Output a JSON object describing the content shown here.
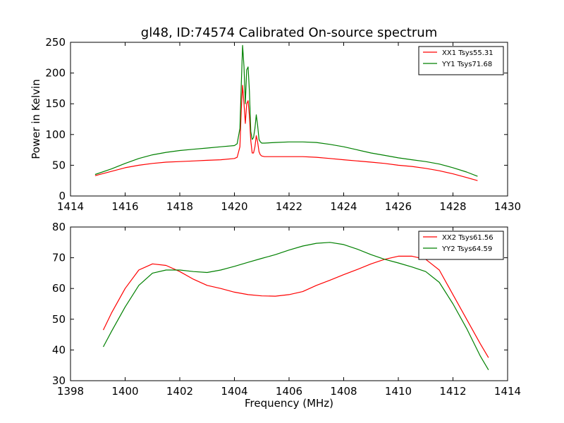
{
  "chart_data": [
    {
      "type": "line",
      "title": "gl48, ID:74574 Calibrated On-source spectrum",
      "xlabel": "",
      "ylabel": "Power in Kelvin",
      "xlim": [
        1414,
        1430
      ],
      "ylim": [
        0,
        250
      ],
      "x_ticks": [
        1414,
        1416,
        1418,
        1420,
        1422,
        1424,
        1426,
        1428,
        1430
      ],
      "y_ticks": [
        0,
        50,
        100,
        150,
        200,
        250
      ],
      "grid": false,
      "legend_position": "top-right",
      "series": [
        {
          "name": "XX1 Tsys55.31",
          "color": "#ff0000",
          "x": [
            1414.9,
            1415.5,
            1416,
            1416.5,
            1417,
            1417.5,
            1418,
            1418.5,
            1419,
            1419.5,
            1420,
            1420.1,
            1420.2,
            1420.25,
            1420.3,
            1420.35,
            1420.4,
            1420.45,
            1420.5,
            1420.55,
            1420.6,
            1420.65,
            1420.7,
            1420.75,
            1420.8,
            1420.85,
            1420.9,
            1420.95,
            1421,
            1421.1,
            1421.5,
            1422,
            1422.5,
            1423,
            1423.5,
            1424,
            1424.5,
            1425,
            1425.5,
            1426,
            1426.5,
            1427,
            1427.5,
            1428,
            1428.5,
            1428.9
          ],
          "y": [
            33,
            40,
            46,
            50,
            53,
            55,
            56,
            57,
            58,
            59,
            61,
            63,
            80,
            140,
            180,
            150,
            118,
            150,
            155,
            130,
            90,
            70,
            70,
            80,
            98,
            88,
            72,
            67,
            65,
            64,
            64,
            64,
            64,
            63,
            61,
            59,
            57,
            55,
            53,
            50,
            48,
            45,
            41,
            36,
            30,
            25
          ]
        },
        {
          "name": "YY1 Tsys71.68",
          "color": "#008000",
          "x": [
            1414.9,
            1415.5,
            1416,
            1416.5,
            1417,
            1417.5,
            1418,
            1418.5,
            1419,
            1419.5,
            1420,
            1420.1,
            1420.2,
            1420.25,
            1420.3,
            1420.35,
            1420.4,
            1420.45,
            1420.5,
            1420.55,
            1420.6,
            1420.65,
            1420.7,
            1420.75,
            1420.8,
            1420.85,
            1420.9,
            1420.95,
            1421,
            1421.1,
            1421.5,
            1422,
            1422.5,
            1423,
            1423.5,
            1424,
            1424.5,
            1425,
            1425.5,
            1426,
            1426.5,
            1427,
            1427.5,
            1428,
            1428.5,
            1428.9
          ],
          "y": [
            35,
            44,
            53,
            61,
            67,
            71,
            74,
            76,
            78,
            80,
            82,
            85,
            110,
            180,
            245,
            210,
            150,
            205,
            210,
            170,
            105,
            92,
            95,
            110,
            132,
            115,
            92,
            88,
            86,
            86,
            87,
            88,
            88,
            87,
            84,
            80,
            75,
            70,
            66,
            62,
            59,
            56,
            52,
            46,
            39,
            32
          ]
        }
      ]
    },
    {
      "type": "line",
      "title": "",
      "xlabel": "Frequency (MHz)",
      "ylabel": "",
      "xlim": [
        1398,
        1414
      ],
      "ylim": [
        30,
        80
      ],
      "x_ticks": [
        1398,
        1400,
        1402,
        1404,
        1406,
        1408,
        1410,
        1412,
        1414
      ],
      "y_ticks": [
        30,
        40,
        50,
        60,
        70,
        80
      ],
      "grid": false,
      "legend_position": "top-right",
      "series": [
        {
          "name": "XX2 Tsys61.56",
          "color": "#ff0000",
          "x": [
            1399.2,
            1399.5,
            1400,
            1400.5,
            1401,
            1401.5,
            1402,
            1402.5,
            1403,
            1403.5,
            1404,
            1404.5,
            1405,
            1405.5,
            1406,
            1406.5,
            1407,
            1407.5,
            1408,
            1408.5,
            1409,
            1409.5,
            1410,
            1410.5,
            1411,
            1411.5,
            1412,
            1412.5,
            1413,
            1413.3
          ],
          "y": [
            46.5,
            52,
            60,
            66,
            68,
            67.5,
            65.5,
            63,
            61,
            60,
            58.8,
            58,
            57.6,
            57.5,
            58,
            59,
            61,
            62.7,
            64.5,
            66.2,
            68,
            69.5,
            70.5,
            70.5,
            69.5,
            66,
            58,
            50,
            42,
            37.5
          ]
        },
        {
          "name": "YY2 Tsys64.59",
          "color": "#008000",
          "x": [
            1399.2,
            1399.5,
            1400,
            1400.5,
            1401,
            1401.5,
            1402,
            1402.5,
            1403,
            1403.5,
            1404,
            1404.5,
            1405,
            1405.5,
            1406,
            1406.5,
            1407,
            1407.5,
            1408,
            1408.5,
            1409,
            1409.5,
            1410,
            1410.5,
            1411,
            1411.5,
            1412,
            1412.5,
            1413,
            1413.3
          ],
          "y": [
            41,
            46,
            54,
            61,
            65,
            66,
            66,
            65.5,
            65.2,
            66,
            67.2,
            68.5,
            69.8,
            71,
            72.5,
            73.8,
            74.7,
            75,
            74.3,
            72.8,
            71,
            69.5,
            68.3,
            67,
            65.5,
            62,
            55,
            47,
            38,
            33.5
          ]
        }
      ]
    }
  ]
}
